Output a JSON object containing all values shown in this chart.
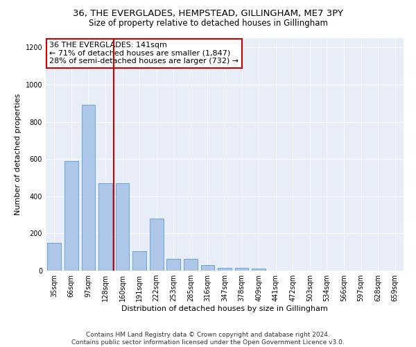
{
  "title": "36, THE EVERGLADES, HEMPSTEAD, GILLINGHAM, ME7 3PY",
  "subtitle": "Size of property relative to detached houses in Gillingham",
  "xlabel": "Distribution of detached houses by size in Gillingham",
  "ylabel": "Number of detached properties",
  "categories": [
    "35sqm",
    "66sqm",
    "97sqm",
    "128sqm",
    "160sqm",
    "191sqm",
    "222sqm",
    "253sqm",
    "285sqm",
    "316sqm",
    "347sqm",
    "378sqm",
    "409sqm",
    "441sqm",
    "472sqm",
    "503sqm",
    "534sqm",
    "566sqm",
    "597sqm",
    "628sqm",
    "659sqm"
  ],
  "values": [
    150,
    590,
    890,
    470,
    470,
    105,
    280,
    62,
    62,
    28,
    15,
    15,
    10,
    0,
    0,
    0,
    0,
    0,
    0,
    0,
    0
  ],
  "bar_color": "#aec6e8",
  "bar_edgecolor": "#5b9bd5",
  "vline_x_index": 3.5,
  "vline_color": "#cc0000",
  "annotation_text": "36 THE EVERGLADES: 141sqm\n← 71% of detached houses are smaller (1,847)\n28% of semi-detached houses are larger (732) →",
  "annotation_box_color": "#ffffff",
  "annotation_box_edgecolor": "#cc0000",
  "ylim": [
    0,
    1250
  ],
  "yticks": [
    0,
    200,
    400,
    600,
    800,
    1000,
    1200
  ],
  "background_color": "#e8eef8",
  "footer": "Contains HM Land Registry data © Crown copyright and database right 2024.\nContains public sector information licensed under the Open Government Licence v3.0.",
  "title_fontsize": 9.5,
  "subtitle_fontsize": 8.5,
  "xlabel_fontsize": 8,
  "ylabel_fontsize": 8,
  "tick_fontsize": 7,
  "annotation_fontsize": 8,
  "footer_fontsize": 6.5
}
